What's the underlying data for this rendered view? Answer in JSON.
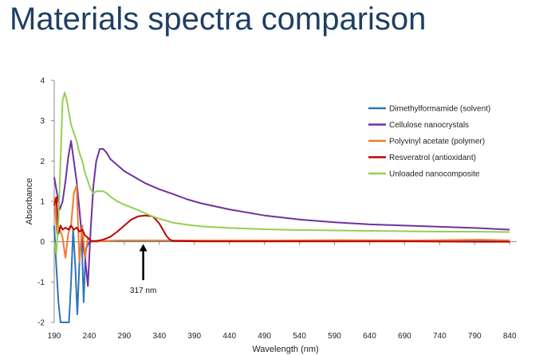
{
  "slide": {
    "title": "Materials spectra comparison"
  },
  "chart_data": {
    "type": "line",
    "title": "",
    "xlabel": "Wavelength (nm)",
    "ylabel": "Absorbance",
    "xlim": [
      190,
      850
    ],
    "ylim": [
      -2,
      4
    ],
    "xticks": [
      190,
      240,
      290,
      340,
      390,
      440,
      490,
      540,
      590,
      640,
      690,
      740,
      790,
      840
    ],
    "yticks": [
      -2,
      -1,
      0,
      1,
      2,
      3,
      4
    ],
    "grid": false,
    "legend_position": "top-right",
    "annotation": {
      "text": "317 nm",
      "x": 317,
      "y": 0
    },
    "series": [
      {
        "name": "Dimethylformamide (solvent)",
        "color": "#2e75b6",
        "x": [
          190,
          193,
          196,
          199,
          202,
          205,
          208,
          211,
          214,
          217,
          220,
          223,
          226,
          229,
          232,
          235,
          240,
          260,
          300,
          400,
          500,
          600,
          700,
          800,
          840
        ],
        "y": [
          0.4,
          -0.6,
          -1.5,
          -2,
          -2,
          -2,
          -2,
          -2,
          -1,
          0.3,
          -0.6,
          -1.8,
          -0.5,
          0.2,
          -1.5,
          -0.2,
          0,
          0.02,
          0.02,
          0.02,
          0.02,
          0.02,
          0.02,
          0.02,
          0.02
        ]
      },
      {
        "name": "Cellulose nanocrystals",
        "color": "#7030a0",
        "x": [
          190,
          194,
          198,
          202,
          206,
          210,
          214,
          218,
          222,
          226,
          230,
          234,
          238,
          242,
          246,
          250,
          255,
          260,
          265,
          270,
          280,
          290,
          300,
          320,
          340,
          360,
          380,
          400,
          440,
          490,
          540,
          590,
          640,
          690,
          740,
          790,
          840
        ],
        "y": [
          1.6,
          1.2,
          0.8,
          1.0,
          1.5,
          2.1,
          2.5,
          2.0,
          1.5,
          0.8,
          0,
          -0.4,
          -1.1,
          0.3,
          1.4,
          2.0,
          2.3,
          2.3,
          2.2,
          2.05,
          1.9,
          1.75,
          1.65,
          1.45,
          1.3,
          1.18,
          1.05,
          0.95,
          0.8,
          0.65,
          0.55,
          0.48,
          0.43,
          0.4,
          0.37,
          0.34,
          0.3
        ]
      },
      {
        "name": "Polyvinyl acetate (polymer)",
        "color": "#ed7d31",
        "x": [
          190,
          194,
          198,
          202,
          206,
          210,
          214,
          218,
          222,
          226,
          230,
          234,
          238,
          242,
          250,
          260,
          280,
          300,
          400,
          500,
          600,
          700,
          800,
          840
        ],
        "y": [
          1.1,
          0.2,
          0.3,
          0.1,
          -0.4,
          0.2,
          0.4,
          1.2,
          1.4,
          -0.5,
          0.4,
          -0.4,
          0.1,
          0.02,
          0,
          0.02,
          0.03,
          0.03,
          0.03,
          0.03,
          0.04,
          0.03,
          0.05,
          0.03
        ]
      },
      {
        "name": "Resveratrol (antioxidant)",
        "color": "#c00000",
        "x": [
          190,
          193,
          196,
          199,
          202,
          206,
          210,
          214,
          218,
          222,
          226,
          230,
          234,
          238,
          242,
          250,
          260,
          270,
          280,
          290,
          300,
          310,
          320,
          330,
          335,
          340,
          345,
          350,
          355,
          360,
          370,
          400,
          500,
          600,
          700,
          800,
          840
        ],
        "y": [
          0.9,
          1.1,
          0.2,
          0.4,
          0.3,
          0.35,
          0.3,
          0.4,
          0.3,
          0.35,
          0.25,
          0.3,
          0.15,
          0.1,
          0.02,
          0.02,
          0.05,
          0.12,
          0.25,
          0.4,
          0.55,
          0.63,
          0.65,
          0.63,
          0.55,
          0.45,
          0.3,
          0.15,
          0.05,
          0.02,
          0.02,
          0.01,
          0.01,
          0.01,
          0.01,
          0.0,
          0.0
        ]
      },
      {
        "name": "Unloaded nanocomposite",
        "color": "#92d050",
        "x": [
          190,
          193,
          196,
          199,
          202,
          205,
          208,
          211,
          214,
          218,
          222,
          226,
          230,
          234,
          238,
          242,
          246,
          250,
          255,
          260,
          265,
          270,
          280,
          290,
          300,
          310,
          320,
          330,
          340,
          350,
          360,
          380,
          400,
          440,
          490,
          540,
          590,
          640,
          690,
          740,
          790,
          840
        ],
        "y": [
          0,
          -0.3,
          0.5,
          2.0,
          3.5,
          3.7,
          3.5,
          3.2,
          2.9,
          2.7,
          2.5,
          2.2,
          2.0,
          1.7,
          1.5,
          1.3,
          1.2,
          1.25,
          1.25,
          1.25,
          1.2,
          1.12,
          1.0,
          0.92,
          0.85,
          0.78,
          0.7,
          0.63,
          0.57,
          0.52,
          0.47,
          0.42,
          0.38,
          0.34,
          0.31,
          0.29,
          0.28,
          0.27,
          0.26,
          0.25,
          0.25,
          0.24
        ]
      }
    ]
  }
}
